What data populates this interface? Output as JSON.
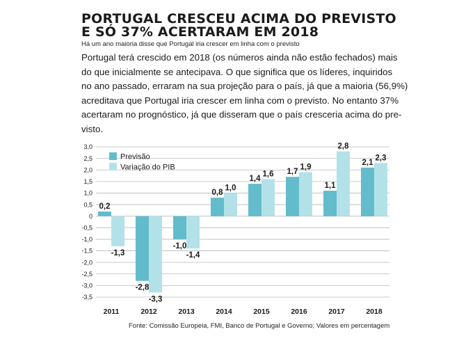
{
  "article": {
    "headline_line1": "PORTUGAL CRESCEU ACIMA DO PREVISTO",
    "headline_line2": "E SÓ 37% ACERTARAM EM 2018",
    "subtitle": "Há um ano maioria disse que Portugal iria crescer em linha com o previsto",
    "body_lines": [
      "Portugal terá crescido em 2018 (os números ainda não estão fechados) mais",
      "do que inicialmente se antecipava. O que significa que os líderes, inquiridos",
      "no ano passado, erraram na sua projeção para o país, já que a maioria (56,9%)",
      "acreditava que Portugal iria crescer em linha com o previsto. No entanto 37%",
      "acertaram no prognóstico, já que disseram que o país cresceria acima do pre-",
      "visto."
    ],
    "source": "Fonte: Comissão Europeia, FMI, Banco de Portugal e Governo; Valores em percentagem"
  },
  "colors": {
    "previsao": "#63bccb",
    "variacao": "#b2e2e8",
    "grid": "#b8b8b8",
    "text": "#1a1a1a"
  },
  "chart_data": {
    "type": "bar",
    "categories": [
      "2011",
      "2012",
      "2013",
      "2014",
      "2015",
      "2016",
      "2017",
      "2018"
    ],
    "series": [
      {
        "name": "Previsão",
        "values": [
          0.2,
          -2.8,
          -1.0,
          0.8,
          1.4,
          1.7,
          1.1,
          2.1
        ],
        "labels": [
          "0,2",
          "-2,8",
          "-1,0",
          "0,8",
          "1,4",
          "1,7",
          "1,1",
          "2,1"
        ]
      },
      {
        "name": "Variação do PIB",
        "values": [
          -1.3,
          -3.3,
          -1.4,
          1.0,
          1.6,
          1.9,
          2.8,
          2.3
        ],
        "labels": [
          "-1,3",
          "-3,3",
          "-1,4",
          "1,0",
          "1,6",
          "1,9",
          "2,8",
          "2,3"
        ]
      }
    ],
    "yticks": [
      3.0,
      2.5,
      2.0,
      1.5,
      1.0,
      0.5,
      0,
      -0.5,
      -1.0,
      -1.5,
      -2.0,
      -2.5,
      -3.0,
      -3.5
    ],
    "ytick_labels": [
      "3,0",
      "2,5",
      "2,0",
      "1,5",
      "1,0",
      "0,5",
      "0",
      "-0,5",
      "-1,0",
      "-1,5",
      "-2,0",
      "-2,5",
      "-3,0",
      "-3,5"
    ],
    "ylim": [
      -3.5,
      3.0
    ],
    "grid": true,
    "legend": "top-left"
  }
}
